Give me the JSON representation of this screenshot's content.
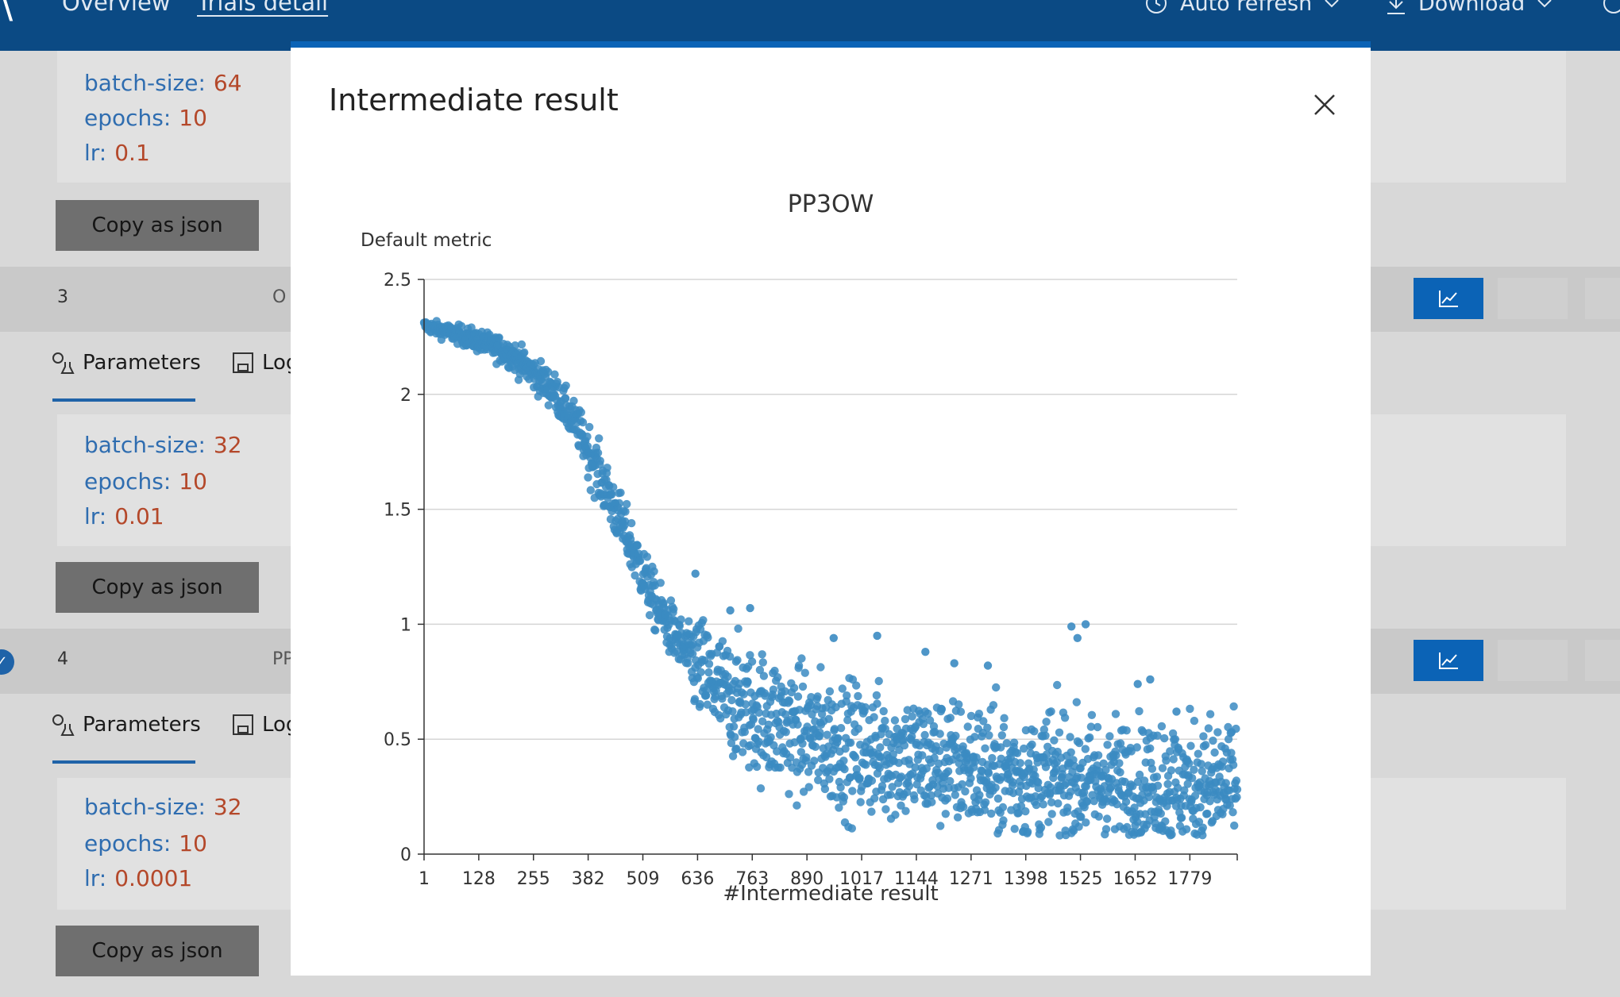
{
  "topbar": {
    "logo": "\\",
    "nav": [
      "Overview",
      "Trials detail"
    ],
    "auto_refresh": "Auto refresh",
    "download": "Download"
  },
  "background": {
    "rows": [
      {
        "number": "",
        "id": "",
        "params": [
          {
            "key": "batch-size:",
            "value": "64"
          },
          {
            "key": "epochs:",
            "value": "10"
          },
          {
            "key": "lr:",
            "value": "0.1"
          }
        ],
        "copy_label": "Copy as json"
      },
      {
        "number": "3",
        "id": "O",
        "tabs": [
          "Parameters",
          "Log"
        ],
        "params": [
          {
            "key": "batch-size:",
            "value": "32"
          },
          {
            "key": "epochs:",
            "value": "10"
          },
          {
            "key": "lr:",
            "value": "0.01"
          }
        ],
        "copy_label": "Copy as json"
      },
      {
        "number": "4",
        "id": "PP",
        "tabs": [
          "Parameters",
          "Log"
        ],
        "params": [
          {
            "key": "batch-size:",
            "value": "32"
          },
          {
            "key": "epochs:",
            "value": "10"
          },
          {
            "key": "lr:",
            "value": "0.0001"
          }
        ],
        "copy_label": "Copy as json"
      }
    ]
  },
  "modal": {
    "title": "Intermediate result"
  },
  "chart_data": {
    "type": "scatter",
    "title": "PP3OW",
    "ylabel": "Default metric",
    "xlabel": "#Intermediate result",
    "xlim": [
      1,
      1889
    ],
    "ylim": [
      0,
      2.5
    ],
    "x_ticks": [
      "1",
      "128",
      "255",
      "382",
      "509",
      "636",
      "763",
      "890",
      "1017",
      "1144",
      "1271",
      "1398",
      "1525",
      "1652",
      "1779"
    ],
    "y_ticks": [
      "0",
      "0.5",
      "1",
      "1.5",
      "2",
      "2.5"
    ],
    "color": "#3b8bc2",
    "point_count": 1875,
    "trend": [
      {
        "x": 1,
        "y": 2.3
      },
      {
        "x": 100,
        "y": 2.25
      },
      {
        "x": 200,
        "y": 2.18
      },
      {
        "x": 300,
        "y": 2.02
      },
      {
        "x": 360,
        "y": 1.85
      },
      {
        "x": 420,
        "y": 1.6
      },
      {
        "x": 480,
        "y": 1.35
      },
      {
        "x": 540,
        "y": 1.08
      },
      {
        "x": 600,
        "y": 0.9
      },
      {
        "x": 680,
        "y": 0.72
      },
      {
        "x": 763,
        "y": 0.62
      },
      {
        "x": 890,
        "y": 0.52
      },
      {
        "x": 1017,
        "y": 0.45
      },
      {
        "x": 1144,
        "y": 0.42
      },
      {
        "x": 1271,
        "y": 0.38
      },
      {
        "x": 1398,
        "y": 0.34
      },
      {
        "x": 1525,
        "y": 0.32
      },
      {
        "x": 1652,
        "y": 0.31
      },
      {
        "x": 1779,
        "y": 0.3
      },
      {
        "x": 1889,
        "y": 0.3
      }
    ],
    "outliers": [
      {
        "x": 712,
        "y": 1.06
      },
      {
        "x": 758,
        "y": 1.07
      },
      {
        "x": 631,
        "y": 1.22
      },
      {
        "x": 952,
        "y": 0.94
      },
      {
        "x": 1053,
        "y": 0.95
      },
      {
        "x": 1165,
        "y": 0.88
      },
      {
        "x": 1232,
        "y": 0.83
      },
      {
        "x": 1310,
        "y": 0.82
      },
      {
        "x": 1504,
        "y": 0.99
      },
      {
        "x": 1537,
        "y": 1.0
      },
      {
        "x": 1518,
        "y": 0.94
      },
      {
        "x": 1687,
        "y": 0.76
      },
      {
        "x": 1658,
        "y": 0.74
      },
      {
        "x": 1748,
        "y": 0.62
      }
    ]
  }
}
